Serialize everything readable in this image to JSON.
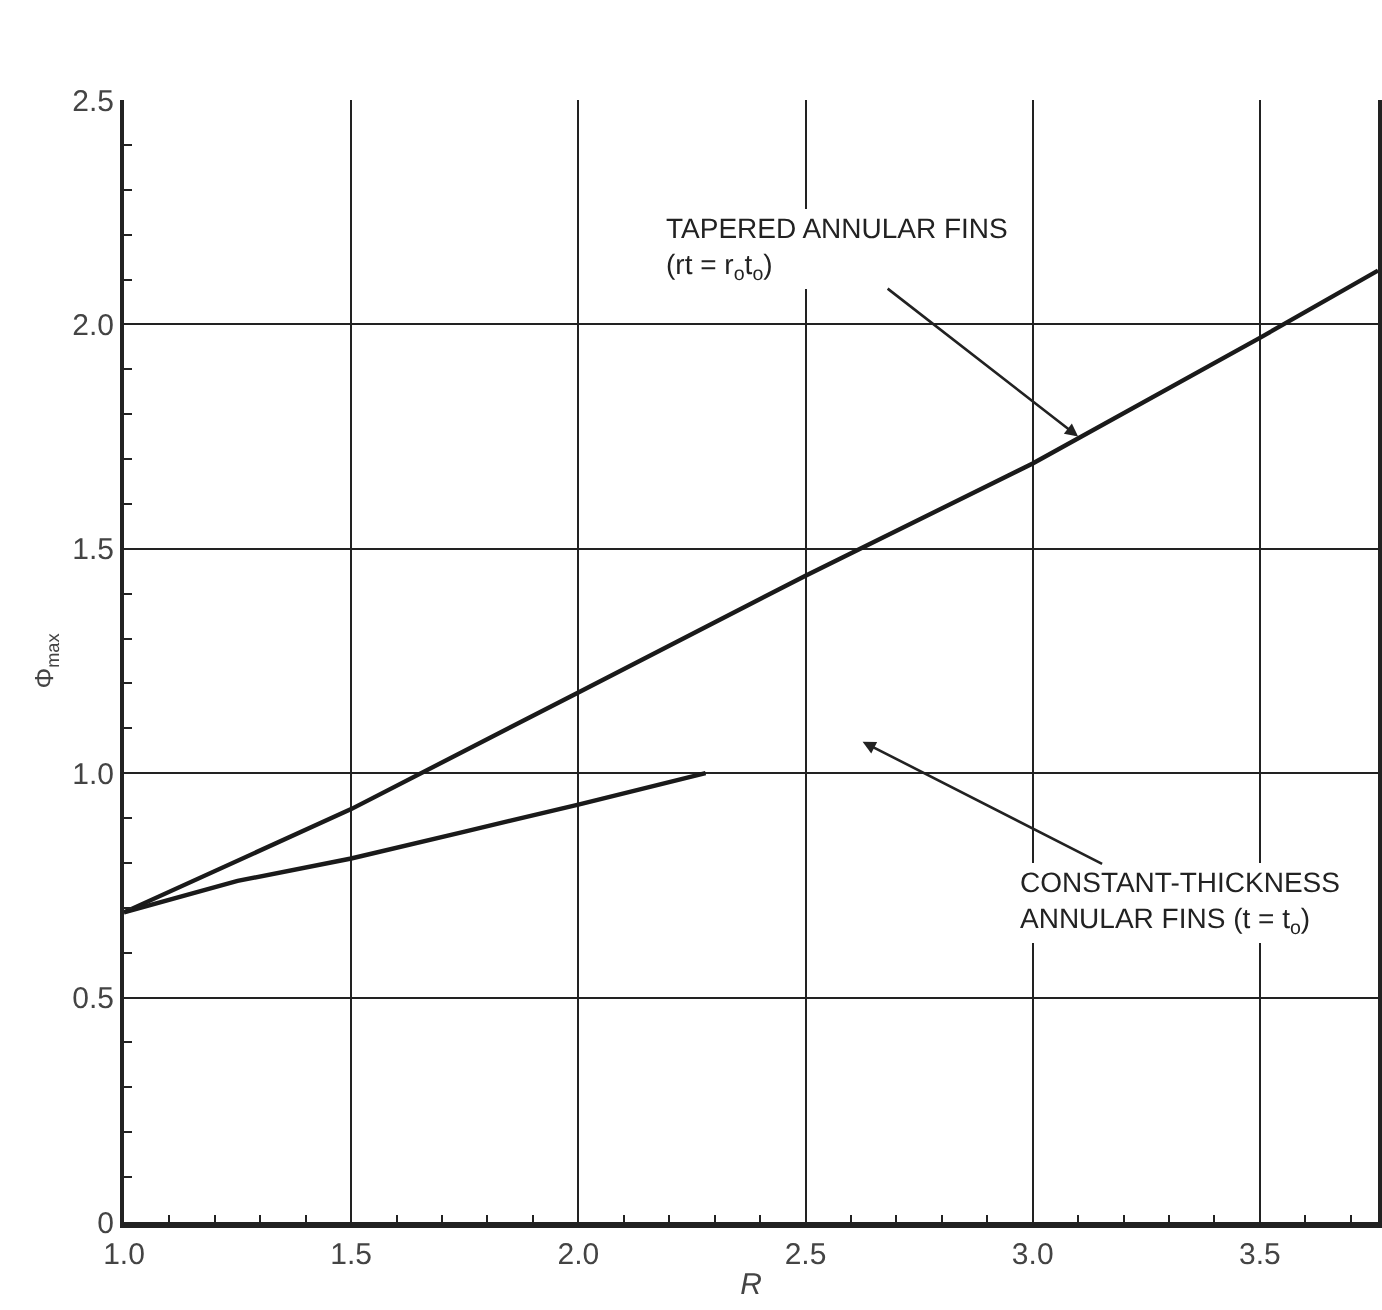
{
  "chart_data": {
    "type": "line",
    "xlabel": "R",
    "ylabel": "Φ$_{max}$",
    "xlim": [
      1,
      3.76
    ],
    "ylim": [
      0,
      2.5
    ],
    "xticks": [
      {
        "value": 1,
        "label": "1.0"
      },
      1.5,
      {
        "value": 2,
        "label": "2.0"
      },
      2.5,
      {
        "value": 3,
        "label": "3.0"
      },
      3.5
    ],
    "yticks": [
      0,
      0.5,
      {
        "value": 1,
        "label": "1.0"
      },
      1.5,
      {
        "value": 2,
        "label": "2.0"
      },
      2.5
    ],
    "grid": true,
    "marker": "none",
    "line_style": "solid",
    "series": [
      {
        "color": "#1a1a1a",
        "x": [
          1,
          1.5,
          2,
          2.5,
          3,
          3.5,
          3.76
        ],
        "values": [
          0.69,
          0.92,
          1.18,
          1.44,
          1.69,
          1.97,
          2.12
        ]
      },
      {
        "color": "#1a1a1a",
        "x": [
          1,
          1.25,
          1.5,
          1.75,
          2,
          2.28
        ],
        "values": [
          0.69,
          0.76,
          0.81,
          0.87,
          0.93,
          1.0
        ]
      }
    ],
    "annotations": [
      {
        "text": "TAPERED ANNULAR FINS\n(rt = r$_{o}$t$_{o}$)",
        "x": 3.1,
        "y": 1.75
      },
      "CONSTANT-THICKNESS\nANNULAR FINS (t = t$_{o}$)"
    ]
  }
}
